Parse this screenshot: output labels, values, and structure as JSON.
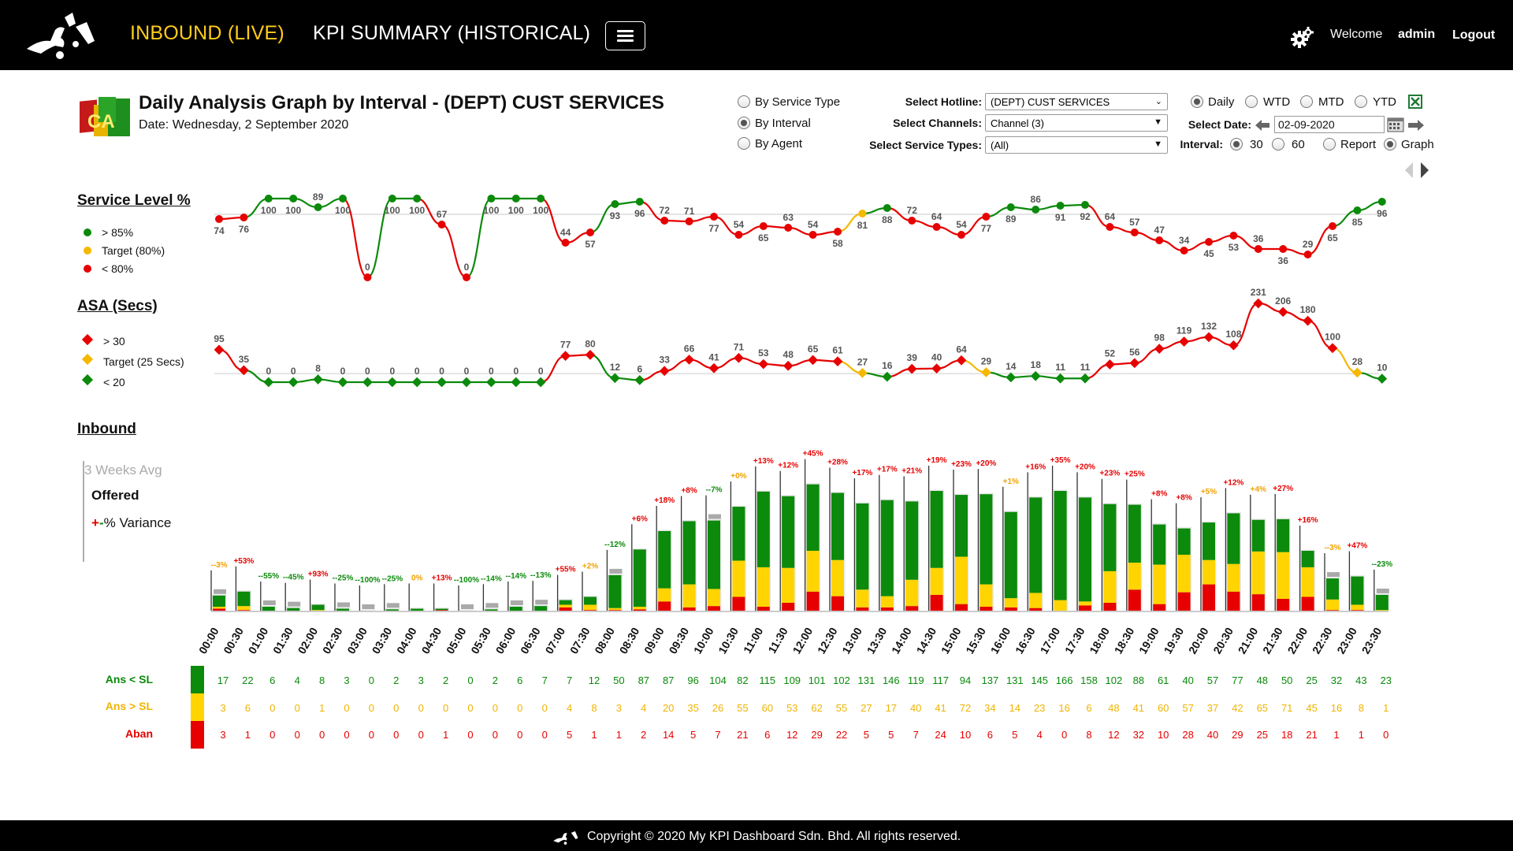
{
  "nav": {
    "inbound_label": "INBOUND (LIVE)",
    "kpi_label": "KPI SUMMARY (HISTORICAL)",
    "welcome": "Welcome",
    "user": "admin",
    "logout": "Logout",
    "icons": [
      "logo-icon",
      "menu-icon",
      "gear-icon"
    ]
  },
  "header": {
    "logo_text": "CA",
    "title": "Daily Analysis Graph by Interval - (DEPT) CUST SERVICES",
    "date_line": "Date: Wednesday, 2 September 2020"
  },
  "view_options": [
    {
      "label": "By Service Type",
      "checked": false
    },
    {
      "label": "By Interval",
      "checked": true
    },
    {
      "label": "By Agent",
      "checked": false
    }
  ],
  "filters": {
    "hotline_label": "Select Hotline:",
    "hotline_value": "(DEPT) CUST SERVICES",
    "channels_label": "Select Channels:",
    "channels_value": "Channel (3)",
    "service_types_label": "Select Service Types:",
    "service_types_value": "(All)"
  },
  "period_options": [
    {
      "label": "Daily",
      "checked": true
    },
    {
      "label": "WTD",
      "checked": false
    },
    {
      "label": "MTD",
      "checked": false
    },
    {
      "label": "YTD",
      "checked": false
    }
  ],
  "date_select": {
    "label": "Select Date:",
    "value": "02-09-2020"
  },
  "interval": {
    "label": "Interval:",
    "options": [
      {
        "label": "30",
        "checked": true
      },
      {
        "label": "60",
        "checked": false
      }
    ],
    "display_options": [
      {
        "label": "Report",
        "checked": false
      },
      {
        "label": "Graph",
        "checked": true
      }
    ]
  },
  "colors": {
    "green": "#0b8a0b",
    "yellow": "#ffd400",
    "red": "#e60000",
    "orange": "#f0a000",
    "grey": "#aaaaaa"
  },
  "service_level": {
    "title": "Service Level %",
    "legend": [
      {
        "label": "> 85%",
        "color": "#0b8a0b"
      },
      {
        "label": "Target (80%)",
        "color": "#f5b800"
      },
      {
        "label": "< 80%",
        "color": "#e60000"
      }
    ]
  },
  "asa": {
    "title": "ASA (Secs)",
    "legend": [
      {
        "label": "> 30",
        "color": "#e60000"
      },
      {
        "label": "Target (25 Secs)",
        "color": "#f5b800"
      },
      {
        "label": "< 20",
        "color": "#0b8a0b"
      }
    ]
  },
  "inbound": {
    "title": "Inbound",
    "legend_avg": "3 Weeks Avg",
    "legend_offered": "Offered",
    "legend_variance_plus": "+",
    "legend_variance_minus": "-",
    "legend_variance_text": "% Variance"
  },
  "table": {
    "rows": [
      {
        "label": "Ans < SL",
        "color": "#0b8a0b"
      },
      {
        "label": "Ans > SL",
        "color": "#f0b400"
      },
      {
        "label": "Aban",
        "color": "#e60000"
      }
    ]
  },
  "chart_data": {
    "type": "line+bar",
    "x": [
      "00:00",
      "00:30",
      "01:00",
      "01:30",
      "02:00",
      "02:30",
      "03:00",
      "03:30",
      "04:00",
      "04:30",
      "05:00",
      "05:30",
      "06:00",
      "06:30",
      "07:00",
      "07:30",
      "08:00",
      "08:30",
      "09:00",
      "09:30",
      "10:00",
      "10:30",
      "11:00",
      "11:30",
      "12:00",
      "12:30",
      "13:00",
      "13:30",
      "14:00",
      "14:30",
      "15:00",
      "15:30",
      "16:00",
      "16:30",
      "17:00",
      "17:30",
      "18:00",
      "18:30",
      "19:00",
      "19:30",
      "20:00",
      "20:30",
      "21:00",
      "21:30",
      "22:00",
      "22:30",
      "23:00",
      "23:30"
    ],
    "service_level": [
      74,
      76,
      100,
      100,
      89,
      100,
      0,
      100,
      100,
      67,
      0,
      100,
      100,
      100,
      44,
      57,
      93,
      96,
      72,
      71,
      77,
      54,
      65,
      63,
      54,
      58,
      81,
      88,
      72,
      64,
      54,
      77,
      89,
      86,
      91,
      92,
      64,
      57,
      47,
      34,
      45,
      53,
      36,
      36,
      29,
      65,
      85,
      96
    ],
    "asa": [
      95,
      35,
      0,
      0,
      8,
      0,
      0,
      0,
      0,
      0,
      0,
      0,
      0,
      0,
      77,
      80,
      12,
      6,
      33,
      66,
      41,
      71,
      53,
      48,
      65,
      61,
      27,
      16,
      39,
      40,
      64,
      29,
      14,
      18,
      11,
      11,
      52,
      56,
      98,
      119,
      132,
      108,
      231,
      206,
      180,
      100,
      28,
      10
    ],
    "ans_lt_sl": [
      17,
      22,
      6,
      4,
      8,
      3,
      0,
      2,
      3,
      2,
      0,
      2,
      6,
      7,
      7,
      12,
      50,
      87,
      87,
      96,
      104,
      82,
      115,
      109,
      101,
      102,
      131,
      146,
      119,
      117,
      94,
      137,
      131,
      145,
      166,
      158,
      102,
      88,
      61,
      40,
      57,
      77,
      48,
      50,
      25,
      32,
      43,
      23
    ],
    "ans_gt_sl": [
      3,
      6,
      0,
      0,
      1,
      0,
      0,
      0,
      0,
      0,
      0,
      0,
      0,
      0,
      4,
      8,
      3,
      4,
      20,
      35,
      26,
      55,
      60,
      53,
      62,
      55,
      27,
      17,
      40,
      41,
      72,
      34,
      14,
      23,
      16,
      6,
      48,
      41,
      60,
      57,
      37,
      42,
      65,
      71,
      45,
      16,
      8,
      1
    ],
    "aban": [
      3,
      1,
      0,
      0,
      0,
      0,
      0,
      0,
      0,
      1,
      0,
      0,
      0,
      0,
      5,
      1,
      1,
      2,
      14,
      5,
      7,
      21,
      6,
      12,
      29,
      22,
      5,
      5,
      7,
      24,
      10,
      6,
      5,
      4,
      0,
      8,
      12,
      32,
      10,
      28,
      40,
      29,
      25,
      18,
      21,
      1,
      1,
      0
    ],
    "variance_labels": [
      "--3%",
      "+53%",
      "--55%",
      "--45%",
      "+93%",
      "--25%",
      "--100%",
      "--25%",
      "0%",
      "+13%",
      "--100%",
      "--14%",
      "--14%",
      "--13%",
      "+55%",
      "+2%",
      "--12%",
      "+6%",
      "+18%",
      "+8%",
      "--7%",
      "+0%",
      "+13%",
      "+12%",
      "+45%",
      "+28%",
      "+17%",
      "+17%",
      "+21%",
      "+19%",
      "+23%",
      "+20%",
      "+1%",
      "+16%",
      "+35%",
      "+20%",
      "+23%",
      "+25%",
      "+8%",
      "+8%",
      "+5%",
      "+12%",
      "+4%",
      "+27%",
      "+16%",
      "--3%",
      "+47%",
      "--23%"
    ]
  },
  "footer": {
    "copyright": "Copyright © 2020 My KPI Dashboard Sdn. Bhd. All rights reserved."
  }
}
